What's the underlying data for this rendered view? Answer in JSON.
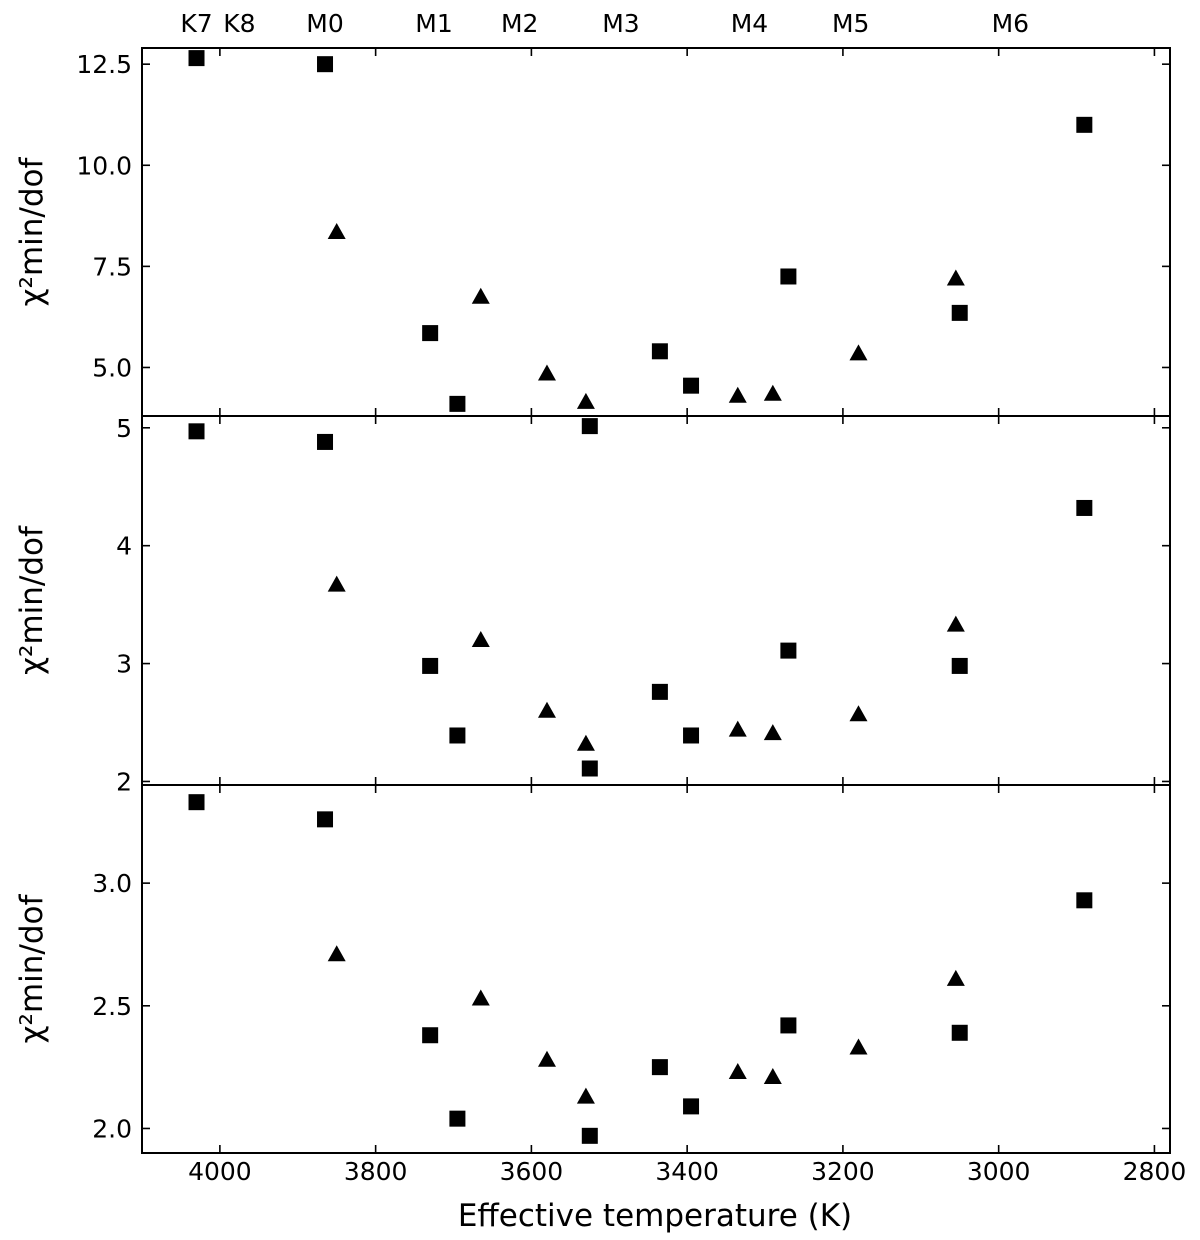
{
  "chart_data": {
    "type": "scatter",
    "xlabel": "Effective temperature (K)",
    "ylabel": "χ²min/dof",
    "x_axis": {
      "lim": [
        4100,
        2780
      ],
      "reversed": true,
      "ticks": [
        4000,
        3800,
        3600,
        3400,
        3200,
        3000,
        2800
      ],
      "tick_labels": [
        "4000",
        "3800",
        "3600",
        "3400",
        "3200",
        "3000",
        "2800"
      ]
    },
    "top_axis": {
      "labels": [
        "K7",
        "K8",
        "M0",
        "M1",
        "M2",
        "M3",
        "M4",
        "M5",
        "M6"
      ],
      "positions": [
        4030,
        3975,
        3865,
        3725,
        3615,
        3485,
        3320,
        3190,
        2985
      ]
    },
    "grid": false,
    "panels": [
      {
        "ylim": [
          3.8,
          12.9
        ],
        "yticks": [
          5.0,
          7.5,
          10.0,
          12.5
        ],
        "ytick_labels": [
          "5.0",
          "7.5",
          "10.0",
          "12.5"
        ],
        "series": [
          {
            "marker": "square",
            "x": [
              4030,
              3865,
              3730,
              3695,
              3525,
              3435,
              3395,
              3270,
              3050,
              2890
            ],
            "y": [
              12.65,
              12.5,
              5.85,
              4.1,
              3.55,
              5.4,
              4.55,
              7.25,
              6.35,
              11.0
            ]
          },
          {
            "marker": "triangle",
            "x": [
              3850,
              3665,
              3580,
              3530,
              3335,
              3290,
              3180,
              3055
            ],
            "y": [
              8.35,
              6.75,
              4.85,
              4.15,
              4.3,
              4.35,
              5.35,
              7.2
            ]
          }
        ]
      },
      {
        "ylim": [
          1.97,
          5.1
        ],
        "yticks": [
          2,
          3,
          4,
          5
        ],
        "ytick_labels": [
          "2",
          "3",
          "4",
          "5"
        ],
        "series": [
          {
            "marker": "square",
            "x": [
              4030,
              3865,
              3730,
              3695,
              3525,
              3435,
              3395,
              3270,
              3050,
              2890
            ],
            "y": [
              4.97,
              4.88,
              2.98,
              2.39,
              2.11,
              2.76,
              2.39,
              3.11,
              2.98,
              4.32
            ]
          },
          {
            "marker": "triangle",
            "x": [
              3850,
              3665,
              3580,
              3530,
              3335,
              3290,
              3180,
              3055
            ],
            "y": [
              3.67,
              3.2,
              2.6,
              2.32,
              2.44,
              2.41,
              2.57,
              3.33
            ]
          }
        ]
      },
      {
        "ylim": [
          1.9,
          3.4
        ],
        "yticks": [
          2.0,
          2.5,
          3.0
        ],
        "ytick_labels": [
          "2.0",
          "2.5",
          "3.0"
        ],
        "series": [
          {
            "marker": "square",
            "x": [
              4030,
              3865,
              3730,
              3695,
              3525,
              3435,
              3395,
              3270,
              3050,
              2890
            ],
            "y": [
              3.33,
              3.26,
              2.38,
              2.04,
              1.97,
              2.25,
              2.09,
              2.42,
              2.39,
              2.93
            ]
          },
          {
            "marker": "triangle",
            "x": [
              3850,
              3665,
              3580,
              3530,
              3335,
              3290,
              3180,
              3055
            ],
            "y": [
              2.71,
              2.53,
              2.28,
              2.13,
              2.23,
              2.21,
              2.33,
              2.61
            ]
          }
        ]
      }
    ]
  }
}
